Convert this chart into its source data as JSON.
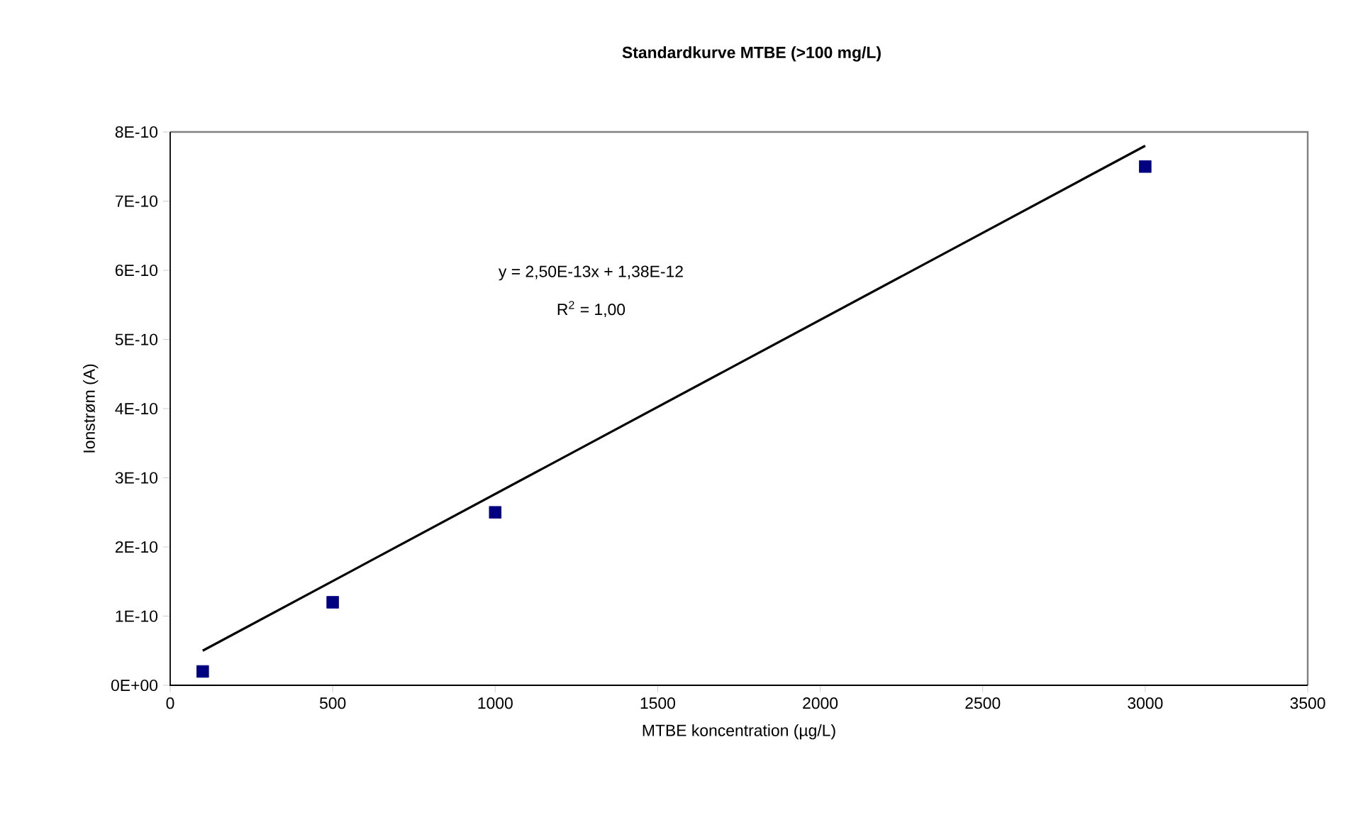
{
  "chart_data": {
    "type": "scatter",
    "title": "Standardkurve MTBE (>100 mg/L)",
    "xlabel": "MTBE koncentration (µg/L)",
    "ylabel": "Ionstrøm (A)",
    "xlim": [
      0,
      3500
    ],
    "xticks": [
      0,
      500,
      1000,
      1500,
      2000,
      2500,
      3000,
      3500
    ],
    "ylim": [
      0,
      8e-10
    ],
    "yticks": [
      {
        "value": 0,
        "label": "0E+00"
      },
      {
        "value": 1e-10,
        "label": "1E-10"
      },
      {
        "value": 2e-10,
        "label": "2E-10"
      },
      {
        "value": 3e-10,
        "label": "3E-10"
      },
      {
        "value": 4e-10,
        "label": "4E-10"
      },
      {
        "value": 5e-10,
        "label": "5E-10"
      },
      {
        "value": 6e-10,
        "label": "6E-10"
      },
      {
        "value": 7e-10,
        "label": "7E-10"
      },
      {
        "value": 8e-10,
        "label": "8E-10"
      }
    ],
    "series": [
      {
        "x": [
          100,
          500,
          1000,
          3000
        ],
        "values": [
          2e-11,
          1.2e-10,
          2.5e-10,
          7.5e-10
        ],
        "color": "#000080",
        "marker": "square"
      },
      {
        "type": "line",
        "x": [
          100,
          3000
        ],
        "values": [
          5e-11,
          7.8e-10
        ],
        "color": "#000000",
        "marker": "none",
        "line_style": "solid"
      }
    ],
    "annotations": [
      "y = 2,50E-13x + 1,38E-12",
      "R$^{2}$ = 1,00"
    ],
    "grid": false
  }
}
